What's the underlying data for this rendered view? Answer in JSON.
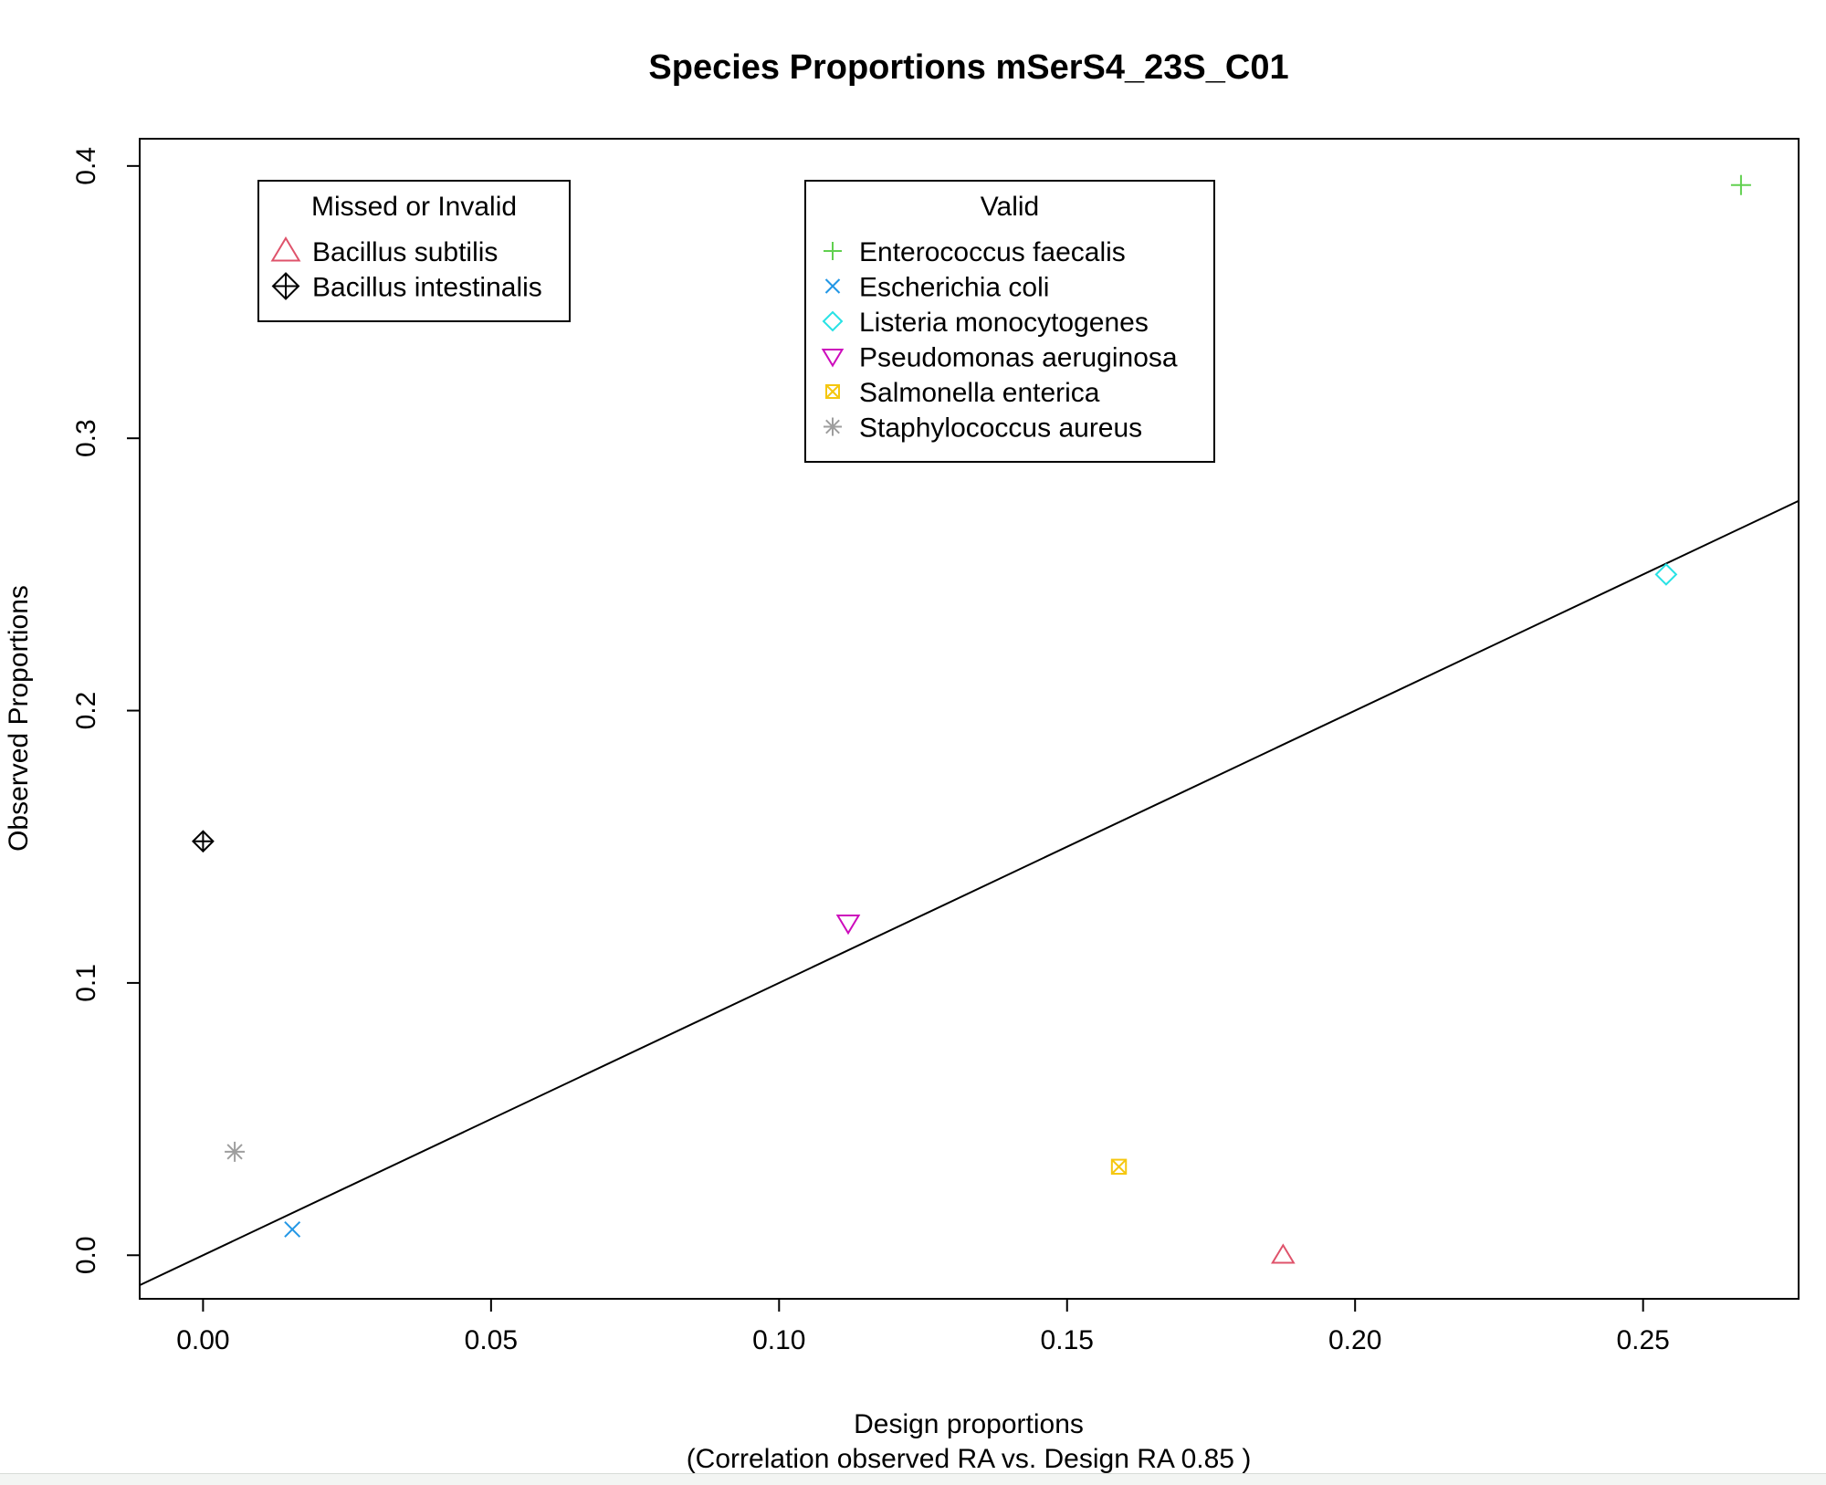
{
  "chart_data": {
    "type": "scatter",
    "title": "Species Proportions mSerS4_23S_C01",
    "xlabel": "Design proportions",
    "xlabel_sub": "(Correlation observed RA vs. Design RA  0.85 )",
    "ylabel": "Observed Proportions",
    "xlim": [
      -0.011,
      0.277
    ],
    "ylim": [
      -0.016,
      0.41
    ],
    "x_ticks": [
      0.0,
      0.05,
      0.1,
      0.15,
      0.2,
      0.25
    ],
    "x_tick_labels": [
      "0.00",
      "0.05",
      "0.10",
      "0.15",
      "0.20",
      "0.25"
    ],
    "y_ticks": [
      0.0,
      0.1,
      0.2,
      0.3,
      0.4
    ],
    "y_tick_labels": [
      "0.0",
      "0.1",
      "0.2",
      "0.3",
      "0.4"
    ],
    "grid": false,
    "reference_line": {
      "type": "identity",
      "slope": 1,
      "intercept": 0
    },
    "points": [
      {
        "name": "Enterococcus faecalis",
        "x": 0.267,
        "y": 0.393,
        "shape": "plus",
        "color": "#61D04F",
        "group": "valid"
      },
      {
        "name": "Escherichia coli",
        "x": 0.0155,
        "y": 0.0095,
        "shape": "cross",
        "color": "#2297E6",
        "group": "valid"
      },
      {
        "name": "Listeria monocytogenes",
        "x": 0.254,
        "y": 0.25,
        "shape": "diamond",
        "color": "#28E2E5",
        "group": "valid"
      },
      {
        "name": "Pseudomonas aeruginosa",
        "x": 0.112,
        "y": 0.122,
        "shape": "triangle-down",
        "color": "#CD0BBC",
        "group": "valid"
      },
      {
        "name": "Salmonella enterica",
        "x": 0.159,
        "y": 0.0325,
        "shape": "square-x",
        "color": "#F5C710",
        "group": "valid"
      },
      {
        "name": "Staphylococcus aureus",
        "x": 0.0055,
        "y": 0.038,
        "shape": "asterisk",
        "color": "#9E9E9E",
        "group": "valid"
      },
      {
        "name": "Bacillus subtilis",
        "x": 0.1875,
        "y": 0.0,
        "shape": "triangle-up",
        "color": "#DF536B",
        "group": "missed"
      },
      {
        "name": "Bacillus intestinalis",
        "x": 0.0,
        "y": 0.152,
        "shape": "diamond-plus",
        "color": "#000000",
        "group": "missed"
      }
    ],
    "legends": [
      {
        "title": "Missed or Invalid",
        "placement": "top-left",
        "entries": [
          {
            "label": "Bacillus subtilis",
            "shape": "triangle-up",
            "color": "#DF536B"
          },
          {
            "label": "Bacillus intestinalis",
            "shape": "diamond-plus",
            "color": "#000000"
          }
        ]
      },
      {
        "title": "Valid",
        "placement": "top-center",
        "entries": [
          {
            "label": "Enterococcus faecalis",
            "shape": "plus",
            "color": "#61D04F"
          },
          {
            "label": "Escherichia coli",
            "shape": "cross",
            "color": "#2297E6"
          },
          {
            "label": "Listeria monocytogenes",
            "shape": "diamond",
            "color": "#28E2E5"
          },
          {
            "label": "Pseudomonas aeruginosa",
            "shape": "triangle-down",
            "color": "#CD0BBC"
          },
          {
            "label": "Salmonella enterica",
            "shape": "square-x",
            "color": "#F5C710"
          },
          {
            "label": "Staphylococcus aureus",
            "shape": "asterisk",
            "color": "#9E9E9E"
          }
        ]
      }
    ]
  }
}
